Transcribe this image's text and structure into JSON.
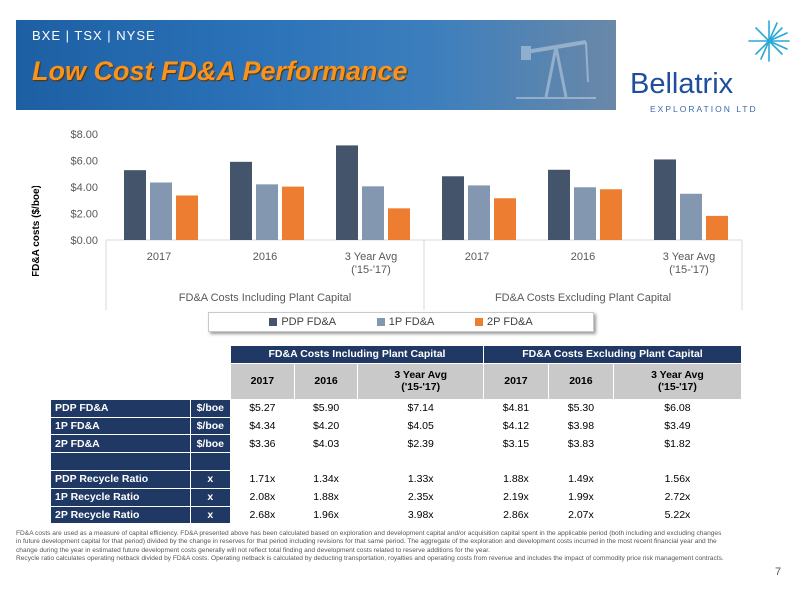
{
  "header": {
    "exchanges": "BXE | TSX | NYSE",
    "title": "Low Cost FD&A Performance"
  },
  "logo": {
    "name": "Bellatrix",
    "sub": "EXPLORATION LTD"
  },
  "colors": {
    "pdp": "#44546a",
    "p1": "#8497b0",
    "p2": "#ed7d31",
    "navy": "#203864"
  },
  "chart_data": {
    "type": "bar",
    "ylabel": "FD&A costs ($/boe)",
    "ylim": [
      0,
      8
    ],
    "yticks": [
      "$0.00",
      "$2.00",
      "$4.00",
      "$6.00",
      "$8.00"
    ],
    "groups": [
      "FD&A Costs Including Plant Capital",
      "FD&A Costs Excluding Plant Capital"
    ],
    "categories": [
      "2017",
      "2016",
      "3 Year Avg\n('15-'17)",
      "2017",
      "2016",
      "3 Year Avg\n('15-'17)"
    ],
    "series": [
      {
        "name": "PDP FD&A",
        "values": [
          5.27,
          5.9,
          7.14,
          4.81,
          5.3,
          6.08
        ]
      },
      {
        "name": "1P FD&A",
        "values": [
          4.34,
          4.2,
          4.05,
          4.12,
          3.98,
          3.49
        ]
      },
      {
        "name": "2P FD&A",
        "values": [
          3.36,
          4.03,
          2.39,
          3.15,
          3.83,
          1.82
        ]
      }
    ],
    "legend": "bottom",
    "grid": false
  },
  "table": {
    "group_headers": [
      "FD&A Costs Including Plant Capital",
      "FD&A Costs Excluding Plant Capital"
    ],
    "col_headers": [
      "2017",
      "2016",
      "3 Year Avg\n('15-'17)",
      "2017",
      "2016",
      "3 Year Avg\n('15-'17)"
    ],
    "rows": [
      {
        "label": "PDP FD&A",
        "unit": "$/boe",
        "values": [
          "$5.27",
          "$5.90",
          "$7.14",
          "$4.81",
          "$5.30",
          "$6.08"
        ]
      },
      {
        "label": "1P FD&A",
        "unit": "$/boe",
        "values": [
          "$4.34",
          "$4.20",
          "$4.05",
          "$4.12",
          "$3.98",
          "$3.49"
        ]
      },
      {
        "label": "2P FD&A",
        "unit": "$/boe",
        "values": [
          "$3.36",
          "$4.03",
          "$2.39",
          "$3.15",
          "$3.83",
          "$1.82"
        ]
      },
      {
        "label": "",
        "unit": "",
        "values": [
          "",
          "",
          "",
          "",
          "",
          ""
        ]
      },
      {
        "label": "PDP Recycle Ratio",
        "unit": "x",
        "values": [
          "1.71x",
          "1.34x",
          "1.33x",
          "1.88x",
          "1.49x",
          "1.56x"
        ]
      },
      {
        "label": "1P Recycle Ratio",
        "unit": "x",
        "values": [
          "2.08x",
          "1.88x",
          "2.35x",
          "2.19x",
          "1.99x",
          "2.72x"
        ]
      },
      {
        "label": "2P Recycle Ratio",
        "unit": "x",
        "values": [
          "2.68x",
          "1.96x",
          "3.98x",
          "2.86x",
          "2.07x",
          "5.22x"
        ]
      }
    ]
  },
  "footnote": {
    "line1": "FD&A costs are used as a measure of capital efficiency. FD&A presented above has been calculated based on exploration and development capital and/or acquisition capital spent in the applicable period (both including and excluding changes in future development capital for that period) divided by the change in reserves for that period including revisions for that same period. The aggregate of the exploration and development costs incurred in the most recent financial year and the change during the year in estimated future development costs generally will not reflect total finding and development costs related to reserve additions for the year.",
    "line2": "Recycle ratio calculates operating netback divided by FD&A costs. Operating netback is calculated by deducting transportation, royalties and operating costs from revenue and includes the impact of commodity price risk management contracts."
  },
  "page_number": "7"
}
